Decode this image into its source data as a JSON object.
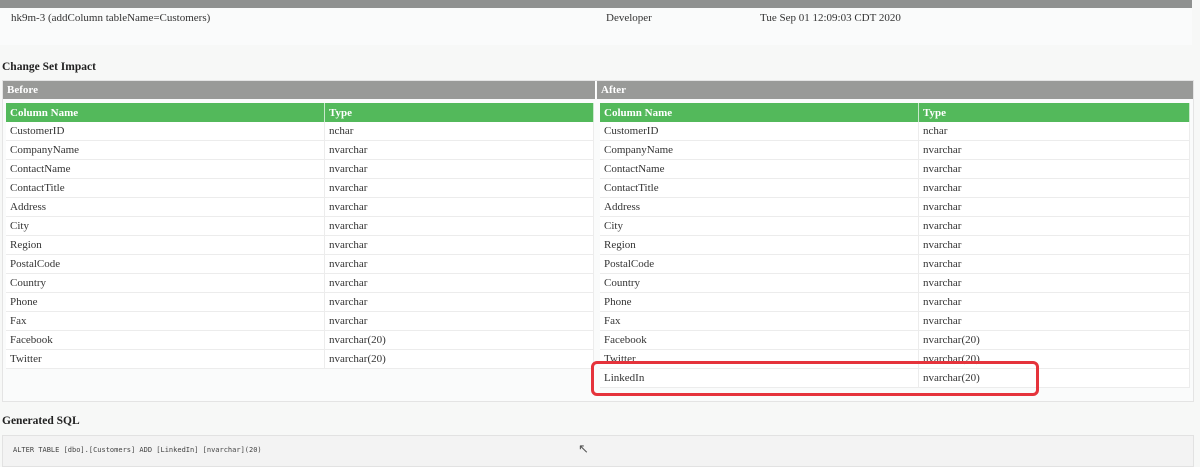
{
  "changeset": {
    "id": "hk9m-3 (addColumn tableName=Customers)",
    "author": "Developer",
    "date": "Tue Sep 01 12:09:03 CDT 2020"
  },
  "impact": {
    "title": "Change Set Impact",
    "before_label": "Before",
    "after_label": "After",
    "col_name": "Column Name",
    "col_type": "Type",
    "before": [
      [
        "CustomerID",
        "nchar"
      ],
      [
        "CompanyName",
        "nvarchar"
      ],
      [
        "ContactName",
        "nvarchar"
      ],
      [
        "ContactTitle",
        "nvarchar"
      ],
      [
        "Address",
        "nvarchar"
      ],
      [
        "City",
        "nvarchar"
      ],
      [
        "Region",
        "nvarchar"
      ],
      [
        "PostalCode",
        "nvarchar"
      ],
      [
        "Country",
        "nvarchar"
      ],
      [
        "Phone",
        "nvarchar"
      ],
      [
        "Fax",
        "nvarchar"
      ],
      [
        "Facebook",
        "nvarchar(20)"
      ],
      [
        "Twitter",
        "nvarchar(20)"
      ]
    ],
    "after": [
      [
        "CustomerID",
        "nchar"
      ],
      [
        "CompanyName",
        "nvarchar"
      ],
      [
        "ContactName",
        "nvarchar"
      ],
      [
        "ContactTitle",
        "nvarchar"
      ],
      [
        "Address",
        "nvarchar"
      ],
      [
        "City",
        "nvarchar"
      ],
      [
        "Region",
        "nvarchar"
      ],
      [
        "PostalCode",
        "nvarchar"
      ],
      [
        "Country",
        "nvarchar"
      ],
      [
        "Phone",
        "nvarchar"
      ],
      [
        "Fax",
        "nvarchar"
      ],
      [
        "Facebook",
        "nvarchar(20)"
      ],
      [
        "Twitter",
        "nvarchar(20)"
      ],
      [
        "LinkedIn",
        "nvarchar(20)"
      ]
    ],
    "highlight_color": "#e5333b"
  },
  "sql": {
    "title": "Generated SQL",
    "statement": "ALTER TABLE [dbo].[Customers] ADD [LinkedIn] [nvarchar](20)"
  }
}
